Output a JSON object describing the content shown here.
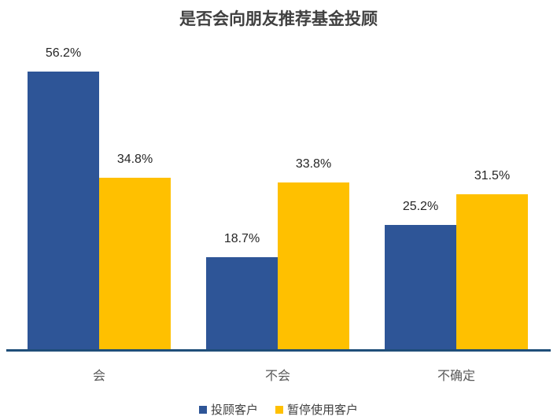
{
  "chart_data": {
    "type": "bar",
    "title": "是否会向朋友推荐基金投顾",
    "categories": [
      "会",
      "不会",
      "不确定"
    ],
    "series": [
      {
        "name": "投顾客户",
        "values": [
          56.2,
          18.7,
          25.2
        ],
        "color": "#2e5597"
      },
      {
        "name": "暂停使用客户",
        "values": [
          34.8,
          33.8,
          31.5
        ],
        "color": "#ffc000"
      }
    ],
    "data_labels": [
      [
        "56.2%",
        "18.7%",
        "25.2%"
      ],
      [
        "34.8%",
        "33.8%",
        "31.5%"
      ]
    ],
    "xlabel": "",
    "ylabel": "",
    "ylim": [
      0,
      60
    ],
    "grid": false,
    "legend_position": "bottom",
    "axis_color": "#1f4e79"
  }
}
